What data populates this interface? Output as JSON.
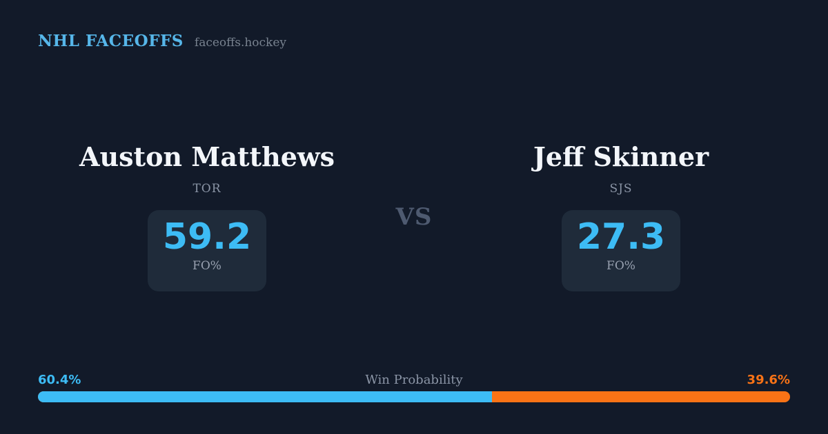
{
  "header": {
    "brand": "NHL FACEOFFS",
    "site": "faceoffs.hockey"
  },
  "players": [
    {
      "name": "Auston Matthews",
      "team": "TOR",
      "stat_value": "59.2",
      "stat_label": "FO%"
    },
    {
      "name": "Jeff Skinner",
      "team": "SJS",
      "stat_value": "27.3",
      "stat_label": "FO%"
    }
  ],
  "vs_label": "VS",
  "win_probability": {
    "title": "Win Probability",
    "left_label": "60.4%",
    "right_label": "39.6%",
    "left_value": 60.4,
    "right_value": 39.6
  },
  "colors": {
    "background": "#121a29",
    "card_background": "#1f2b3a",
    "accent_blue": "#3dbcf5",
    "accent_orange": "#f97316",
    "brand_blue": "#56b6e9",
    "text_primary": "#f3f6fa",
    "text_muted": "#8b95a6"
  },
  "chart_data": {
    "type": "bar",
    "title": "Win Probability",
    "categories": [
      "Auston Matthews (TOR)",
      "Jeff Skinner (SJS)"
    ],
    "values": [
      60.4,
      39.6
    ],
    "unit": "%",
    "xlim": [
      0,
      100
    ],
    "legend_position": "none",
    "layout": "single stacked horizontal bar; blue segment = left player, orange segment = right player",
    "faceoff_pct": {
      "Auston Matthews": 59.2,
      "Jeff Skinner": 27.3
    }
  }
}
